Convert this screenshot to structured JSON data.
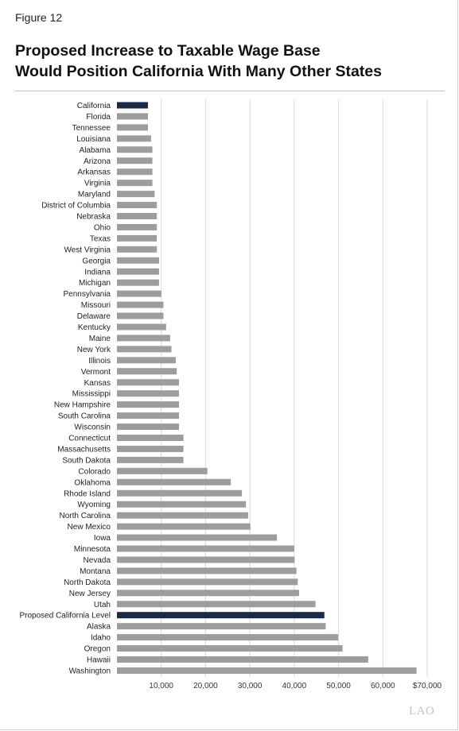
{
  "figure_label": "Figure 12",
  "title_lines": [
    "Proposed Increase to Taxable Wage Base",
    "Would Position California With Many Other States"
  ],
  "logo_text": "LAO",
  "colors": {
    "highlight": "#1b2a47",
    "bar": "#9d9d9d",
    "grid": "#d9d9d9"
  },
  "chart_data": {
    "type": "bar",
    "orientation": "horizontal",
    "title": "Proposed Increase to Taxable Wage Base Would Position California With Many Other States",
    "xlim": [
      0,
      72000
    ],
    "grid": true,
    "x_ticks": [
      10000,
      20000,
      30000,
      40000,
      50000,
      60000,
      70000
    ],
    "x_tick_labels": [
      "10,000",
      "20,000",
      "30,000",
      "40,000",
      "50,000",
      "60,000",
      "$70,000"
    ],
    "highlighted": [
      "California",
      "Proposed California Level"
    ],
    "categories": [
      "California",
      "Florida",
      "Tennessee",
      "Louisiana",
      "Alabama",
      "Arizona",
      "Arkansas",
      "Virginia",
      "Maryland",
      "District of Columbia",
      "Nebraska",
      "Ohio",
      "Texas",
      "West Virginia",
      "Georgia",
      "Indiana",
      "Michigan",
      "Pennsylvania",
      "Missouri",
      "Delaware",
      "Kentucky",
      "Maine",
      "New York",
      "Illinois",
      "Vermont",
      "Kansas",
      "Mississippi",
      "New Hampshire",
      "South Carolina",
      "Wisconsin",
      "Connecticut",
      "Massachusetts",
      "South Dakota",
      "Colorado",
      "Oklahoma",
      "Rhode Island",
      "Wyoming",
      "North Carolina",
      "New Mexico",
      "Iowa",
      "Minnesota",
      "Nevada",
      "Montana",
      "North Dakota",
      "New Jersey",
      "Utah",
      "Proposed California Level",
      "Alaska",
      "Idaho",
      "Oregon",
      "Hawaii",
      "Washington"
    ],
    "values": [
      7000,
      7000,
      7000,
      7700,
      8000,
      8000,
      8000,
      8000,
      8500,
      9000,
      9000,
      9000,
      9000,
      9000,
      9500,
      9500,
      9500,
      10000,
      10500,
      10500,
      11100,
      12000,
      12300,
      13271,
      13500,
      14000,
      14000,
      14000,
      14000,
      14000,
      15000,
      15000,
      15000,
      20400,
      25700,
      28200,
      29100,
      29600,
      30100,
      36100,
      40000,
      40100,
      40500,
      40800,
      41100,
      44800,
      46800,
      47100,
      49900,
      50900,
      56700,
      67600
    ]
  }
}
